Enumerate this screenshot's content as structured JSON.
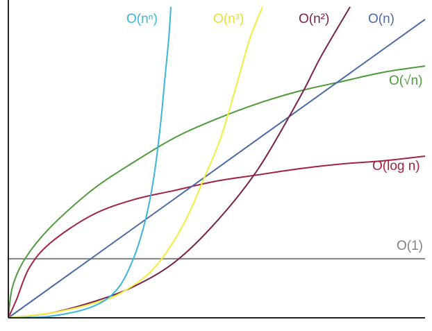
{
  "chart_data": {
    "type": "line",
    "title": "",
    "xlabel": "",
    "ylabel": "",
    "xlim": [
      0,
      10
    ],
    "ylim": [
      0,
      10
    ],
    "grid": false,
    "legend": "inline labels at curve ends",
    "series": [
      {
        "name": "O(1)",
        "color": "#808080",
        "x": [
          0,
          10
        ],
        "y": [
          1.9,
          1.9
        ]
      },
      {
        "name": "O(log n)",
        "color": "#a3233f",
        "x": [
          0,
          0.2,
          0.5,
          1,
          2,
          3,
          4,
          5,
          6,
          7,
          8,
          9,
          10
        ],
        "y": [
          0,
          0.6,
          1.6,
          2.4,
          3.3,
          3.8,
          4.1,
          4.4,
          4.6,
          4.8,
          4.95,
          5.05,
          5.2
        ]
      },
      {
        "name": "O(√n)",
        "color": "#4c9a3a",
        "x": [
          0,
          0.1,
          0.4,
          1,
          2,
          3,
          4,
          5,
          6,
          7,
          8,
          9,
          10
        ],
        "y": [
          0,
          1.0,
          1.9,
          2.9,
          4.1,
          5.0,
          5.8,
          6.4,
          6.9,
          7.3,
          7.6,
          7.9,
          8.1
        ]
      },
      {
        "name": "O(n)",
        "color": "#4a6aa6",
        "x": [
          0,
          10
        ],
        "y": [
          0,
          9.6
        ]
      },
      {
        "name": "O(n²)",
        "color": "#7a1f4a",
        "x": [
          0,
          1,
          2,
          3,
          4,
          5,
          6,
          7,
          7.5,
          8.2
        ],
        "y": [
          0,
          0.15,
          0.5,
          1.0,
          1.8,
          3.1,
          4.8,
          7.1,
          8.4,
          10
        ]
      },
      {
        "name": "O(n³)",
        "color": "#f2ee3c",
        "x": [
          0,
          1,
          2,
          2.7,
          3.5,
          4.2,
          4.7,
          5.1,
          5.5,
          5.8,
          6.1
        ],
        "y": [
          0,
          0.15,
          0.45,
          0.8,
          1.6,
          3.0,
          4.5,
          5.8,
          7.6,
          9.0,
          10
        ]
      },
      {
        "name": "O(nⁿ)",
        "color": "#3ab5da",
        "x": [
          0,
          1,
          2,
          2.6,
          3.0,
          3.3,
          3.5,
          3.65,
          3.75,
          3.85,
          3.9
        ],
        "y": [
          0,
          0.05,
          0.35,
          0.9,
          1.9,
          3.2,
          4.6,
          6.2,
          7.6,
          9.0,
          10
        ]
      }
    ]
  }
}
